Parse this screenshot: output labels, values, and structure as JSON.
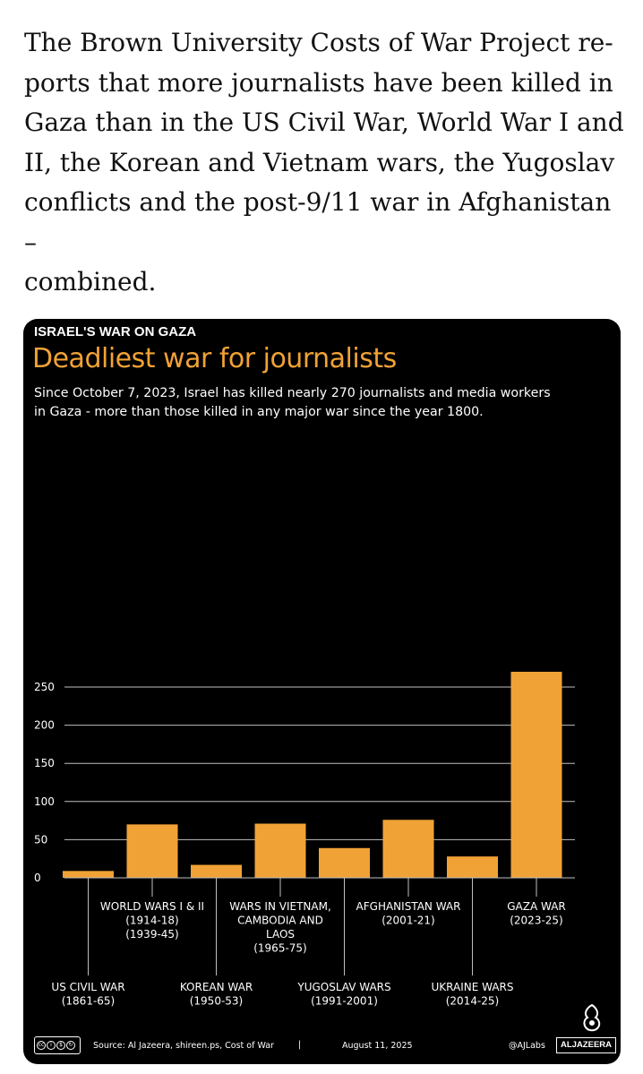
{
  "article": {
    "lines": [
      "The Brown University Costs of War Project re-",
      "ports that more journalists have been killed in",
      "Gaza than in the US Civil War, World War I and",
      "II, the Korean and Vietnam wars, the Yugoslav",
      "conflicts and the post-9/11 war in Afghanistan –",
      "combined."
    ]
  },
  "infographic": {
    "kicker": "ISRAEL'S WAR ON GAZA",
    "headline": "Deadliest war for journalists",
    "subtitle_lines": [
      "Since October 7, 2023, Israel has killed nearly 270 journalists and media workers",
      "in Gaza - more than those killed in any major war since the year 1800."
    ],
    "footer": {
      "license": "CC BY NC SA",
      "source": "Source: Al Jazeera, shireen.ps, Cost of War",
      "separator": "|",
      "date": "August 11, 2025",
      "handle": "@AJLabs",
      "brand": "ALJAZEERA"
    },
    "colors": {
      "background": "#000000",
      "bar": "#f0a236",
      "headline": "#f0a236",
      "text": "#ffffff",
      "grid": "#bfbfbf"
    }
  },
  "chart_data": {
    "type": "bar",
    "ylim": [
      0,
      270
    ],
    "yticks": [
      0,
      50,
      100,
      150,
      200,
      250
    ],
    "grid": true,
    "categories": [
      {
        "lines": [
          "US CIVIL WAR",
          "(1861-65)"
        ],
        "value": 9
      },
      {
        "lines": [
          "WORLD WARS I & II",
          "(1914-18)",
          "(1939-45)"
        ],
        "value": 70
      },
      {
        "lines": [
          "KOREAN WAR",
          "(1950-53)"
        ],
        "value": 17
      },
      {
        "lines": [
          "WARS IN VIETNAM,",
          "CAMBODIA AND",
          "LAOS",
          "(1965-75)"
        ],
        "value": 71
      },
      {
        "lines": [
          "YUGOSLAV WARS",
          "(1991-2001)"
        ],
        "value": 39
      },
      {
        "lines": [
          "AFGHANISTAN WAR",
          "(2001-21)"
        ],
        "value": 76
      },
      {
        "lines": [
          "UKRAINE WARS",
          "(2014-25)"
        ],
        "value": 28
      },
      {
        "lines": [
          "GAZA WAR",
          "(2023-25)"
        ],
        "value": 270
      }
    ]
  }
}
